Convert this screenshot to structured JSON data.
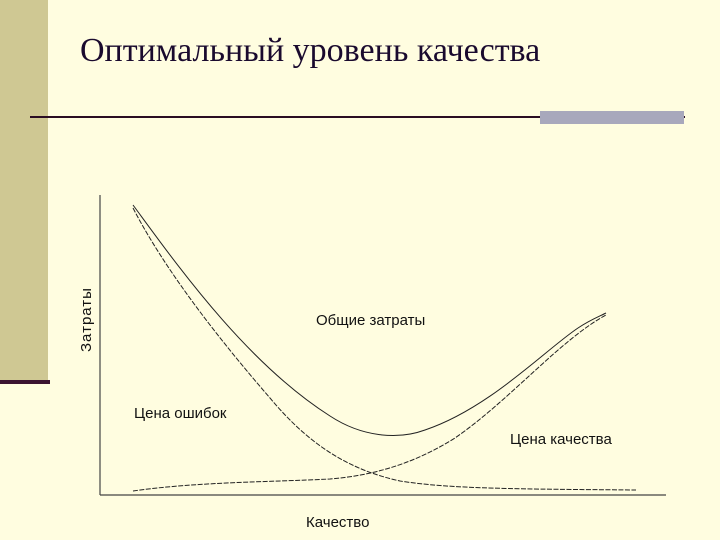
{
  "slide": {
    "title": "Оптимальный уровень качества",
    "colors": {
      "background": "#fffde0",
      "side_band": "#cfc893",
      "accent": "#a8a8bc",
      "rule": "#2a0d22"
    }
  },
  "diagram": {
    "axes": {
      "x_label": "Качество",
      "y_label": "Затраты"
    },
    "curves": [
      {
        "key": "total",
        "label": "Общие затраты",
        "style": "solid"
      },
      {
        "key": "errors",
        "label": "Цена ошибок",
        "style": "dashed"
      },
      {
        "key": "quality",
        "label": "Цена качества",
        "style": "dashed"
      }
    ]
  }
}
